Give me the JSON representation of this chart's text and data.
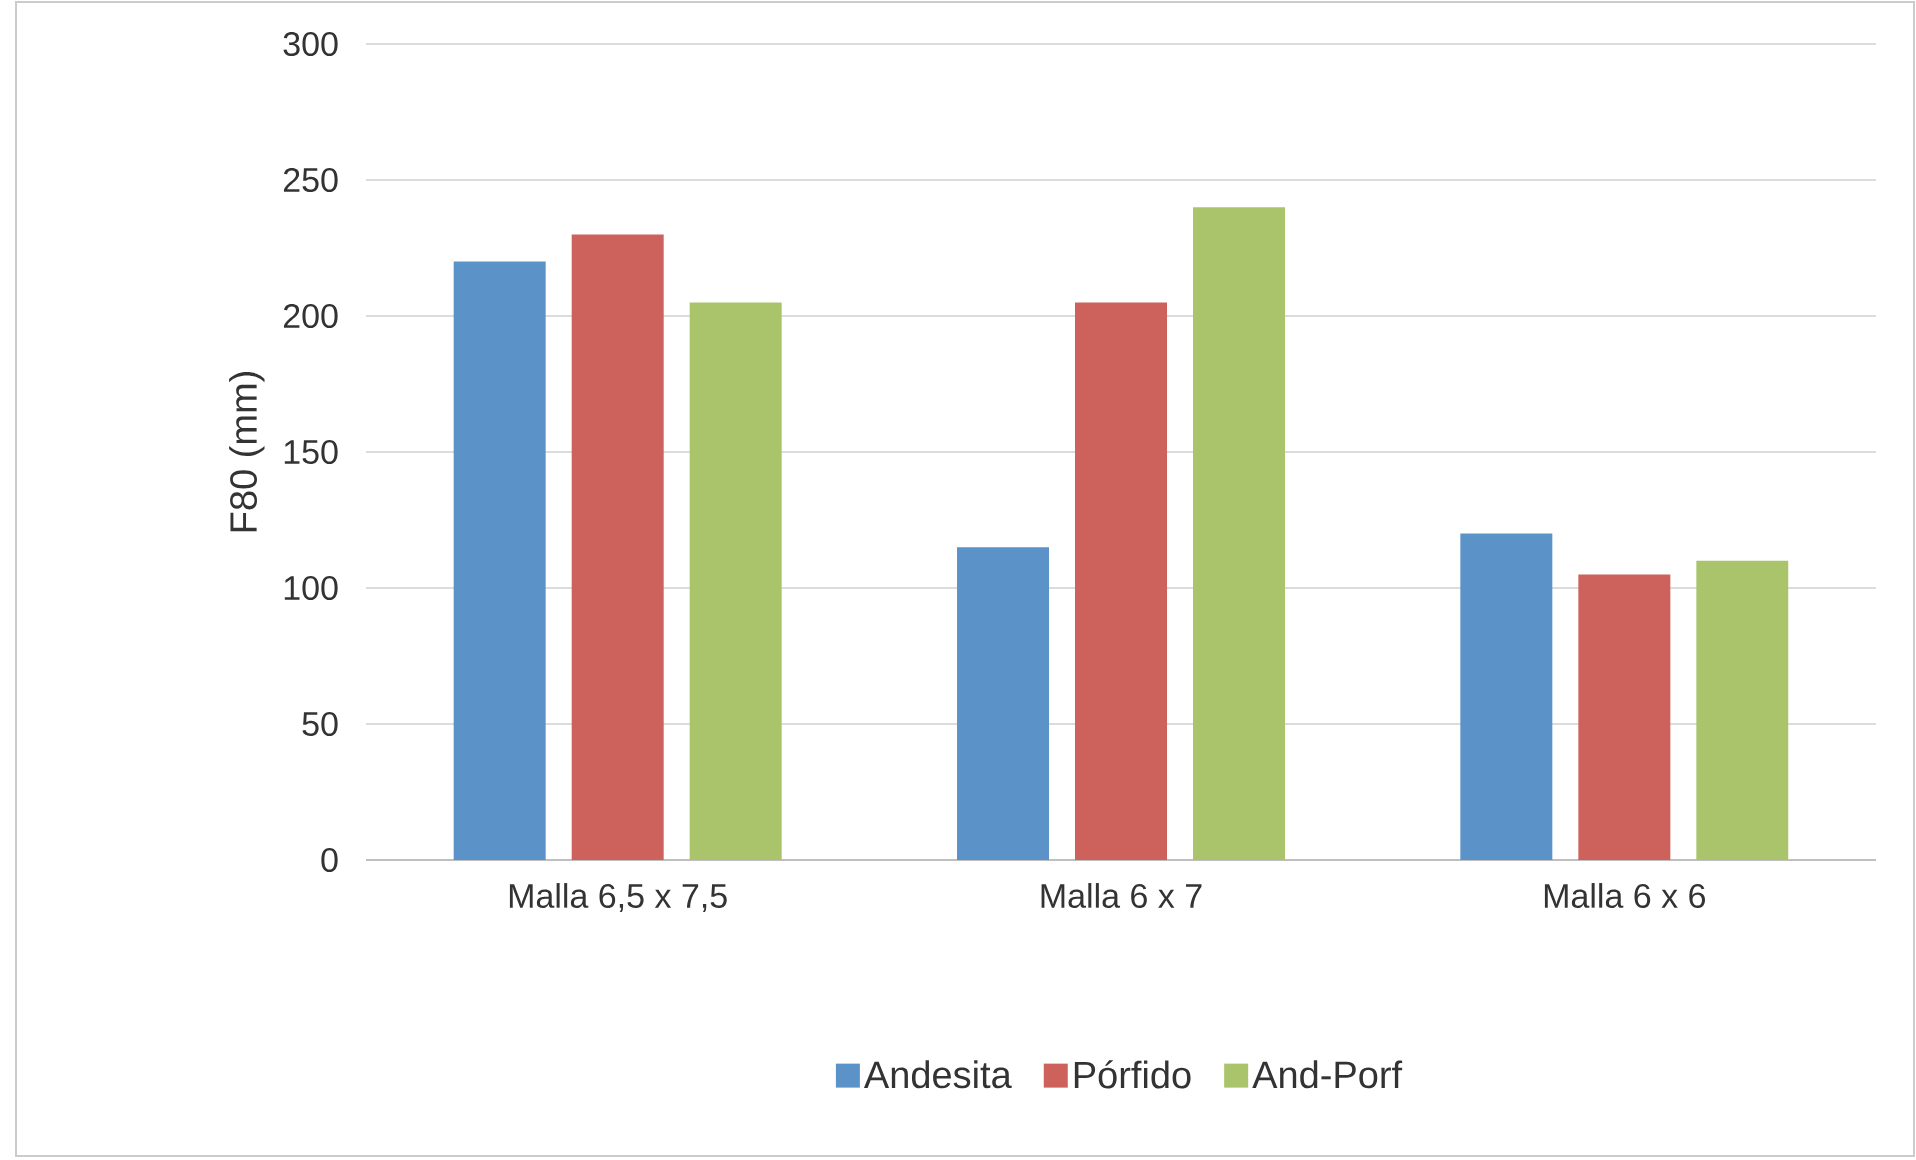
{
  "chart_data": {
    "type": "bar",
    "ylabel": "F80 (mm)",
    "categories": [
      "Malla 6,5 x 7,5",
      "Malla 6 x 7",
      "Malla 6 x 6"
    ],
    "series": [
      {
        "name": "Andesita",
        "color": "#5b93c9",
        "values": [
          220,
          115,
          120
        ]
      },
      {
        "name": "Pórfido",
        "color": "#cd625c",
        "values": [
          230,
          205,
          105
        ]
      },
      {
        "name": "And-Porf",
        "color": "#a9c46a",
        "values": [
          205,
          240,
          110
        ]
      }
    ],
    "ylim": [
      0,
      300
    ],
    "yticks": [
      0,
      50,
      100,
      150,
      200,
      250,
      300
    ],
    "grid": "y",
    "legend": "bottom"
  }
}
